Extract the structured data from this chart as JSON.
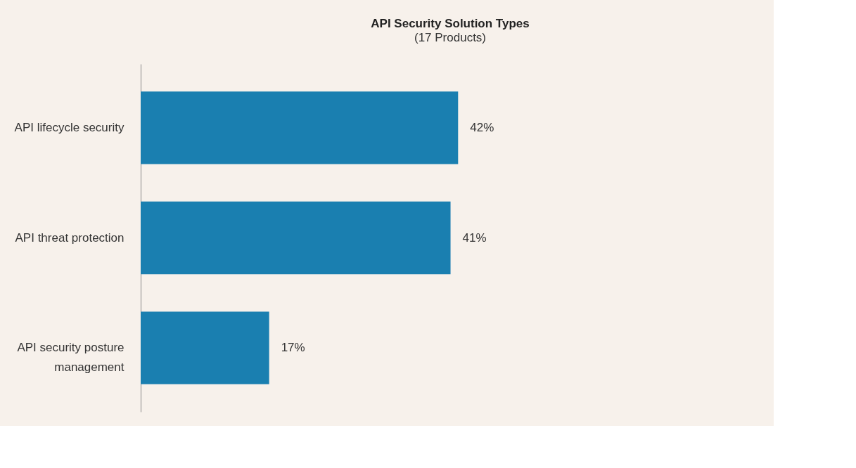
{
  "chart_data": {
    "type": "bar",
    "orientation": "horizontal",
    "title": "API Security Solution Types",
    "subtitle": "(17 Products)",
    "categories": [
      "API lifecycle security",
      "API threat protection",
      "API security posture management"
    ],
    "values": [
      42,
      41,
      17
    ],
    "value_labels": [
      "42%",
      "41%",
      "17%"
    ],
    "color": "#1a7fb0",
    "grid": false
  }
}
